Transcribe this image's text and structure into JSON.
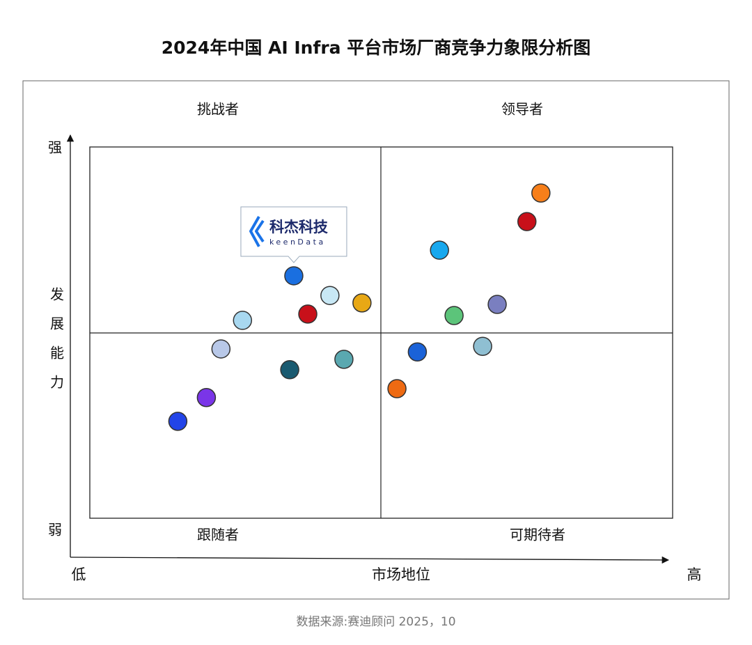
{
  "chart_data": {
    "type": "scatter",
    "title": "2024年中国 AI Infra 平台市场厂商竞争力象限分析图",
    "quadrants": {
      "top_left": "挑战者",
      "top_right": "领导者",
      "bottom_left": "跟随者",
      "bottom_right": "可期待者"
    },
    "x_axis": {
      "label": "市场地位",
      "low": "低",
      "high": "高"
    },
    "y_axis": {
      "label": "发展能力",
      "low": "弱",
      "high": "强"
    },
    "source": "数据来源:赛迪顾问 2025，10",
    "annotation": {
      "name": "科杰科技",
      "subname": "keenData"
    },
    "xlim": [
      0,
      100
    ],
    "ylim": [
      0,
      100
    ],
    "x": [
      77.4,
      75.0,
      60.0,
      69.9,
      62.5,
      67.4,
      56.2,
      52.7,
      35.0,
      41.2,
      46.7,
      37.4,
      26.2,
      22.5,
      43.6,
      34.3,
      20.0,
      15.1
    ],
    "values": [
      87.6,
      79.9,
      72.2,
      57.6,
      54.6,
      46.3,
      44.8,
      34.9,
      65.3,
      60.0,
      58.0,
      55.0,
      53.3,
      45.6,
      42.8,
      40.0,
      32.5,
      26.1
    ],
    "colors": [
      "#f77f1a",
      "#c8101a",
      "#18a8ee",
      "#7a7fc0",
      "#5cc47a",
      "#8fbfd2",
      "#1a62d8",
      "#ee6a12",
      "#1a6fe0",
      "#c8e8f5",
      "#e8a815",
      "#c8101a",
      "#a8d8f0",
      "#b8c8e8",
      "#5aa8b0",
      "#1a5a70",
      "#7a35e8",
      "#2244e8"
    ]
  }
}
